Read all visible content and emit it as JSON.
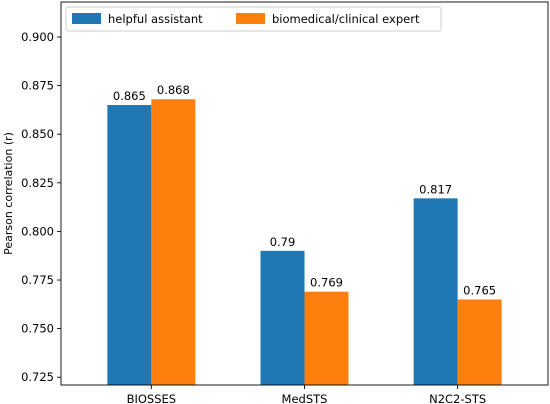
{
  "chart_data": {
    "type": "bar",
    "categories": [
      "BIOSSES",
      "MedSTS",
      "N2C2-STS"
    ],
    "series": [
      {
        "name": "helpful assistant",
        "color": "#1f77b4",
        "values": [
          0.865,
          0.79,
          0.817
        ]
      },
      {
        "name": "biomedical/clinical expert",
        "color": "#ff7f0e",
        "values": [
          0.868,
          0.769,
          0.765
        ]
      }
    ],
    "data_labels": [
      [
        "0.865",
        "0.79",
        "0.817"
      ],
      [
        "0.868",
        "0.769",
        "0.765"
      ]
    ],
    "ylabel": "Pearson correlation (r)",
    "xlabel": "",
    "ylim": [
      0.721,
      0.918
    ],
    "yticks": [
      0.725,
      0.75,
      0.775,
      0.8,
      0.825,
      0.85,
      0.875,
      0.9
    ],
    "ytick_labels": [
      "0.725",
      "0.750",
      "0.775",
      "0.800",
      "0.825",
      "0.850",
      "0.875",
      "0.900"
    ],
    "legend_position": "top-left",
    "grid": false
  }
}
